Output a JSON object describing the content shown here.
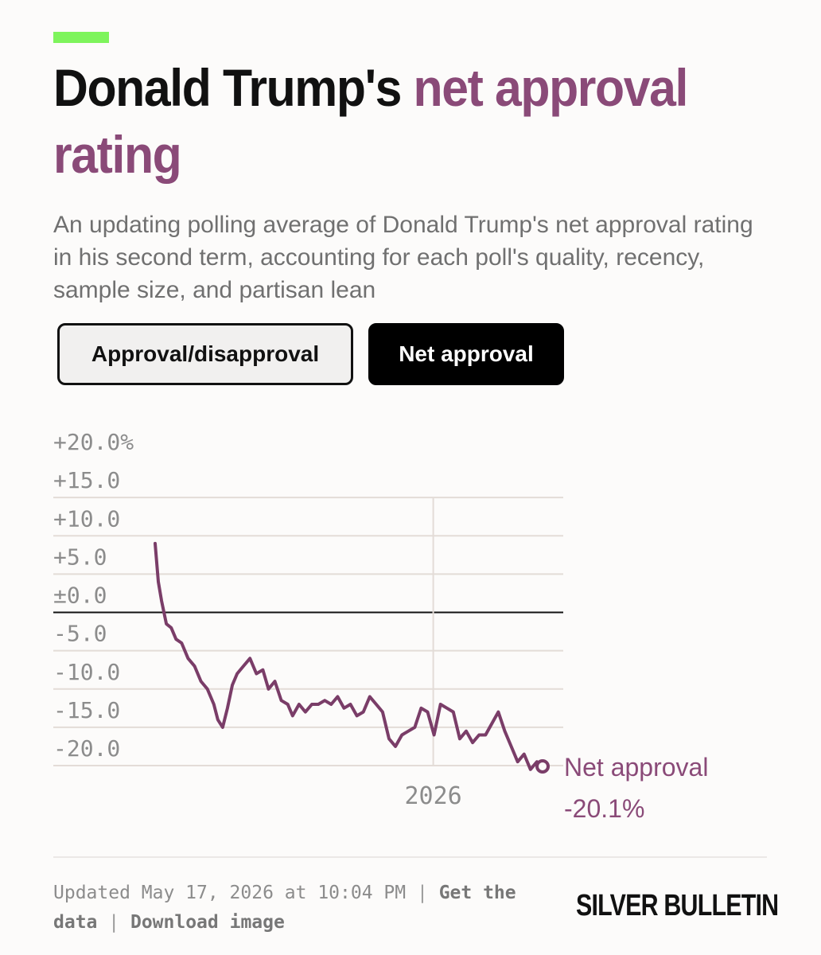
{
  "header": {
    "title_plain": "Donald Trump's ",
    "title_highlight": "net approval rating",
    "subtitle": "An updating polling average of Donald Trump's net approval rating in his second term, accounting for each poll's quality, recency, sample size, and partisan lean"
  },
  "toggles": {
    "approval_disapproval": "Approval/disapproval",
    "net_approval": "Net approval",
    "active": "net_approval"
  },
  "colors": {
    "accent_bar": "#7ef45c",
    "highlight": "#8a4a78",
    "line": "#7a3d68",
    "grid": "#e3dcd7",
    "zero_line": "#111111",
    "tick_text": "#8c8c8c"
  },
  "chart_data": {
    "type": "line",
    "title": "Donald Trump's net approval rating",
    "y_tick_labels": [
      "+20.0%",
      "+15.0",
      "+10.0",
      "+5.0",
      "±0.0",
      "-5.0",
      "-10.0",
      "-15.0",
      "-20.0"
    ],
    "y_tick_values": [
      20,
      15,
      10,
      5,
      0,
      -5,
      -10,
      -15,
      -20
    ],
    "ylim": [
      -20,
      20
    ],
    "x_tick_labels": [
      "2026"
    ],
    "x_tick_values": [
      "2026-01-01"
    ],
    "xlim": [
      "2025-01-20",
      "2026-05-17"
    ],
    "grid": true,
    "zero_line": true,
    "series": [
      {
        "name": "Net approval",
        "end_value_label": "-20.1%",
        "x": [
          "2025-01-20",
          "2025-01-24",
          "2025-01-28",
          "2025-02-03",
          "2025-02-09",
          "2025-02-15",
          "2025-02-22",
          "2025-03-02",
          "2025-03-10",
          "2025-03-18",
          "2025-03-26",
          "2025-04-03",
          "2025-04-08",
          "2025-04-14",
          "2025-04-20",
          "2025-04-26",
          "2025-05-02",
          "2025-05-10",
          "2025-05-18",
          "2025-05-26",
          "2025-06-03",
          "2025-06-10",
          "2025-06-18",
          "2025-06-26",
          "2025-07-04",
          "2025-07-10",
          "2025-07-18",
          "2025-07-26",
          "2025-08-03",
          "2025-08-11",
          "2025-08-19",
          "2025-08-27",
          "2025-09-04",
          "2025-09-12",
          "2025-09-20",
          "2025-09-28",
          "2025-10-06",
          "2025-10-14",
          "2025-10-22",
          "2025-10-30",
          "2025-11-07",
          "2025-11-15",
          "2025-11-23",
          "2025-12-01",
          "2025-12-09",
          "2025-12-17",
          "2025-12-25",
          "2026-01-02",
          "2026-01-10",
          "2026-01-18",
          "2026-01-26",
          "2026-02-03",
          "2026-02-11",
          "2026-02-19",
          "2026-02-27",
          "2026-03-07",
          "2026-03-15",
          "2026-03-23",
          "2026-03-31",
          "2026-04-08",
          "2026-04-16",
          "2026-04-24",
          "2026-05-02",
          "2026-05-10",
          "2026-05-17"
        ],
        "y": [
          9.0,
          4.0,
          1.5,
          -1.5,
          -2.0,
          -3.5,
          -4.0,
          -6.0,
          -7.0,
          -9.0,
          -10.0,
          -12.0,
          -14.0,
          -15.0,
          -12.5,
          -9.5,
          -8.0,
          -7.0,
          -6.0,
          -8.0,
          -7.5,
          -10.0,
          -9.0,
          -11.5,
          -12.0,
          -13.5,
          -12.0,
          -13.0,
          -12.0,
          -12.0,
          -11.5,
          -12.0,
          -11.0,
          -12.5,
          -12.0,
          -13.5,
          -13.0,
          -11.0,
          -12.0,
          -13.0,
          -16.5,
          -17.5,
          -16.0,
          -15.5,
          -15.0,
          -12.5,
          -13.0,
          -16.0,
          -12.0,
          -12.5,
          -13.0,
          -16.5,
          -15.5,
          -17.0,
          -16.0,
          -16.0,
          -14.5,
          -13.0,
          -15.5,
          -17.5,
          -19.5,
          -18.5,
          -20.5,
          -19.5,
          -20.1
        ]
      }
    ]
  },
  "footer": {
    "updated": "Updated May 17, 2026 at 10:04 PM",
    "separator": "|",
    "get_data": "Get the data",
    "download": "Download image",
    "brand": "SILVER BULLETIN"
  }
}
